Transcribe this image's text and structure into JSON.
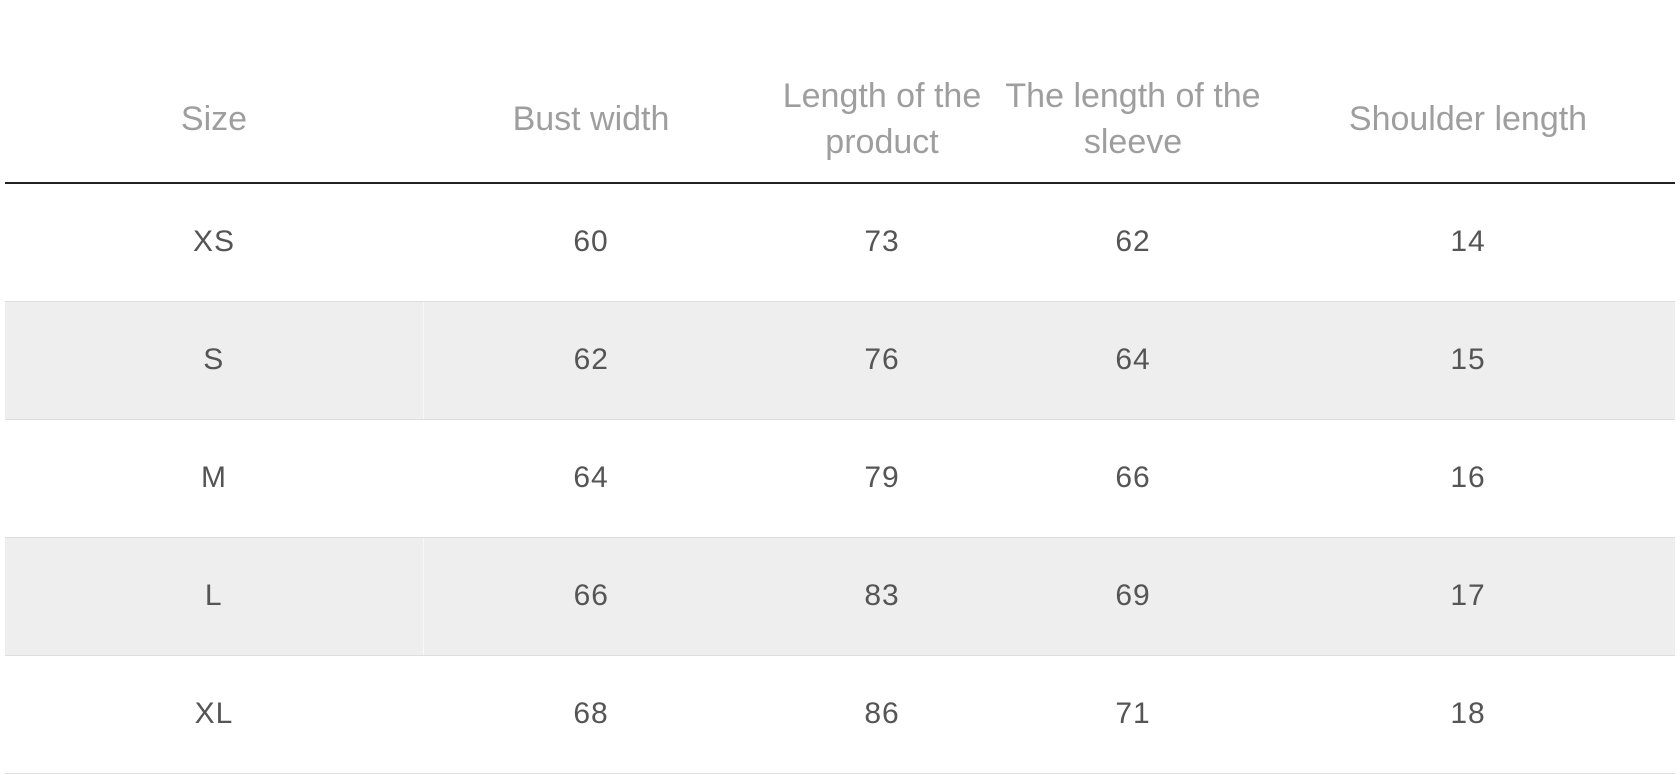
{
  "size_chart": {
    "headers": [
      "Size",
      "Bust width",
      "Length of the product",
      "The length of the sleeve",
      "Shoulder length"
    ],
    "rows": [
      [
        "XS",
        "60",
        "73",
        "62",
        "14"
      ],
      [
        "S",
        "62",
        "76",
        "64",
        "15"
      ],
      [
        "M",
        "64",
        "79",
        "66",
        "16"
      ],
      [
        "L",
        "66",
        "83",
        "69",
        "17"
      ],
      [
        "XL",
        "68",
        "86",
        "71",
        "18"
      ]
    ]
  },
  "colors": {
    "header_text": "#9e9e9e",
    "cell_text": "#555555",
    "header_rule": "#222222",
    "row_divider": "#dedede",
    "shaded_row": "#eeeeee"
  }
}
